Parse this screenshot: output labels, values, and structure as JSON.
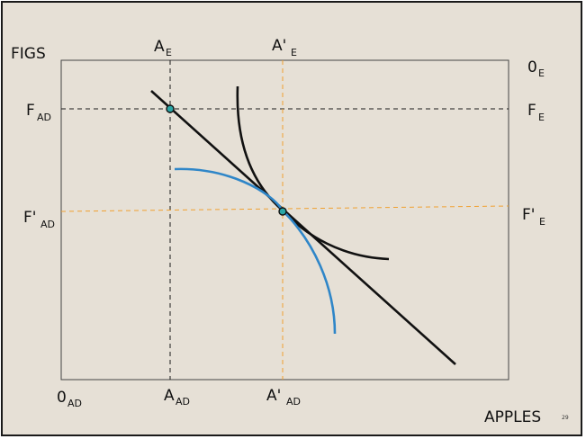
{
  "axes": {
    "y_label": "FIGS",
    "x_label": "APPLES",
    "origin_ad_main": "0",
    "origin_ad_sub": "AD",
    "origin_e_main": "0",
    "origin_e_sub": "E"
  },
  "top_labels": {
    "ae_main": "A",
    "ae_sub": "E",
    "ape_main": "A'",
    "ape_sub": "E"
  },
  "bottom_labels": {
    "aad_main": "A",
    "aad_sub": "AD",
    "apad_main": "A'",
    "apad_sub": "AD"
  },
  "left_labels": {
    "fad_main": "F",
    "fad_sub": "AD",
    "fpad_main": "F'",
    "fpad_sub": "AD"
  },
  "right_labels": {
    "fe_main": "F",
    "fe_sub": "E",
    "fpe_main": "F'",
    "fpe_sub": "E"
  },
  "page_number": "29",
  "colors": {
    "background": "#e6e0d6",
    "black_guide": "#1a1a1a",
    "orange_guide": "#f0a030",
    "blue_curve": "#2f86c8",
    "point_fill": "#2aa6a6"
  }
}
